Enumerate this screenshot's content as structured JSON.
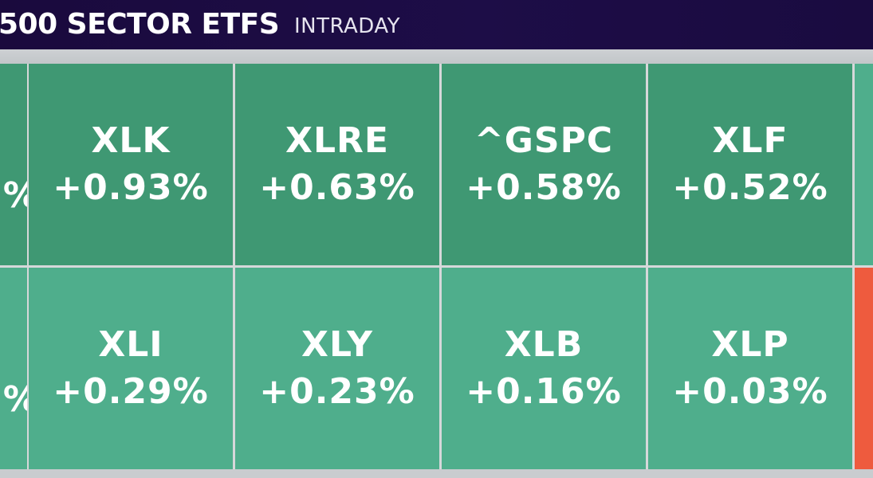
{
  "header": {
    "title": "500 SECTOR ETFS",
    "subtitle": "INTRADAY"
  },
  "colors": {
    "header_bg": "#1d0d47",
    "dark_green": "#3f9873",
    "light_green": "#4fae8c",
    "red": "#ee5b3e"
  },
  "row1": [
    {
      "ticker": "XLK",
      "change": "+0.93%"
    },
    {
      "ticker": "XLRE",
      "change": "+0.63%"
    },
    {
      "ticker": "^GSPC",
      "change": "+0.58%"
    },
    {
      "ticker": "XLF",
      "change": "+0.52%"
    }
  ],
  "row2": [
    {
      "ticker": "XLI",
      "change": "+0.29%"
    },
    {
      "ticker": "XLY",
      "change": "+0.23%"
    },
    {
      "ticker": "XLB",
      "change": "+0.16%"
    },
    {
      "ticker": "XLP",
      "change": "+0.03%"
    }
  ],
  "partial_left": {
    "row1_glyph": "%",
    "row2_glyph": "%"
  }
}
